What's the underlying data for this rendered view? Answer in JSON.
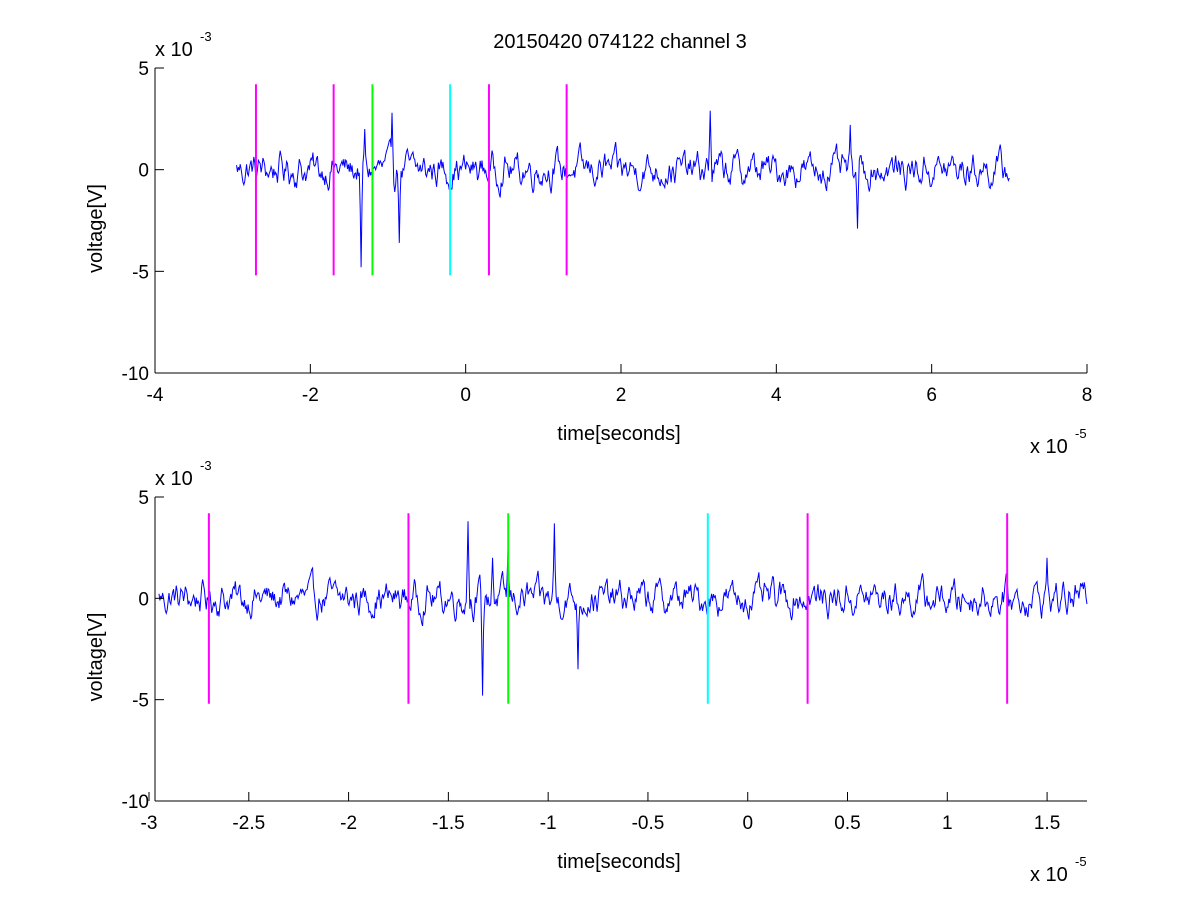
{
  "title": "20150420 074122 channel 3",
  "colors": {
    "signal": "#0000ff",
    "magenta_marker": "#ff00ff",
    "green_marker": "#00ff00",
    "cyan_marker": "#00ffff",
    "axis": "#000000",
    "background": "#ffffff"
  },
  "chart_data": [
    {
      "type": "line",
      "xlabel": "time[seconds]",
      "ylabel": "voltage[V]",
      "x_multiplier": {
        "base": "x 10",
        "power": "-5"
      },
      "y_multiplier": {
        "base": "x 10",
        "power": "-3"
      },
      "xlim": [
        -4,
        8
      ],
      "ylim": [
        -10,
        5
      ],
      "xticks": [
        -4,
        -2,
        0,
        2,
        4,
        6,
        8
      ],
      "yticks": [
        -10,
        -5,
        0,
        5
      ],
      "grid": false,
      "series": [
        {
          "color": "#0000ff",
          "x_range": [
            -2.95,
            7.0
          ],
          "baseline": 0,
          "noise_amplitude": 0.8,
          "peaks": [
            {
              "x": -1.35,
              "y": -4.8
            },
            {
              "x": -1.3,
              "y": 2.0
            },
            {
              "x": -0.95,
              "y": 2.8
            },
            {
              "x": -0.85,
              "y": -3.6
            },
            {
              "x": 3.15,
              "y": 2.9
            },
            {
              "x": 4.95,
              "y": 2.2
            },
            {
              "x": 5.05,
              "y": -2.9
            }
          ]
        }
      ],
      "markers": [
        {
          "x": -2.7,
          "color": "magenta",
          "y_range": [
            -5.2,
            4.2
          ]
        },
        {
          "x": -1.7,
          "color": "magenta",
          "y_range": [
            -5.2,
            4.2
          ]
        },
        {
          "x": -1.2,
          "color": "green",
          "y_range": [
            -5.2,
            4.2
          ]
        },
        {
          "x": -0.2,
          "color": "cyan",
          "y_range": [
            -5.2,
            4.2
          ]
        },
        {
          "x": 0.3,
          "color": "magenta",
          "y_range": [
            -5.2,
            4.2
          ]
        },
        {
          "x": 1.3,
          "color": "magenta",
          "y_range": [
            -5.2,
            4.2
          ]
        }
      ]
    },
    {
      "type": "line",
      "xlabel": "time[seconds]",
      "ylabel": "voltage[V]",
      "x_multiplier": {
        "base": "x 10",
        "power": "-5"
      },
      "y_multiplier": {
        "base": "x 10",
        "power": "-3"
      },
      "xlim": [
        -2.97,
        1.7
      ],
      "ylim": [
        -10,
        5
      ],
      "xticks": [
        -3,
        -2.5,
        -2,
        -1.5,
        -1,
        -0.5,
        0,
        0.5,
        1,
        1.5
      ],
      "yticks": [
        -10,
        -5,
        0,
        5
      ],
      "grid": false,
      "series": [
        {
          "color": "#0000ff",
          "x_range": [
            -2.95,
            1.7
          ],
          "baseline": 0,
          "noise_amplitude": 0.8,
          "peaks": [
            {
              "x": -1.4,
              "y": 3.8
            },
            {
              "x": -1.33,
              "y": -4.8
            },
            {
              "x": -1.28,
              "y": 2.0
            },
            {
              "x": -1.2,
              "y": 2.5
            },
            {
              "x": -0.97,
              "y": 3.7
            },
            {
              "x": -0.85,
              "y": -3.5
            },
            {
              "x": 1.5,
              "y": 2.0
            }
          ]
        }
      ],
      "markers": [
        {
          "x": -2.7,
          "color": "magenta",
          "y_range": [
            -5.2,
            4.2
          ]
        },
        {
          "x": -1.7,
          "color": "magenta",
          "y_range": [
            -5.2,
            4.2
          ]
        },
        {
          "x": -1.2,
          "color": "green",
          "y_range": [
            -5.2,
            4.2
          ]
        },
        {
          "x": -0.2,
          "color": "cyan",
          "y_range": [
            -5.2,
            4.2
          ]
        },
        {
          "x": 0.3,
          "color": "magenta",
          "y_range": [
            -5.2,
            4.2
          ]
        },
        {
          "x": 1.3,
          "color": "magenta",
          "y_range": [
            -5.2,
            4.2
          ]
        }
      ]
    }
  ]
}
